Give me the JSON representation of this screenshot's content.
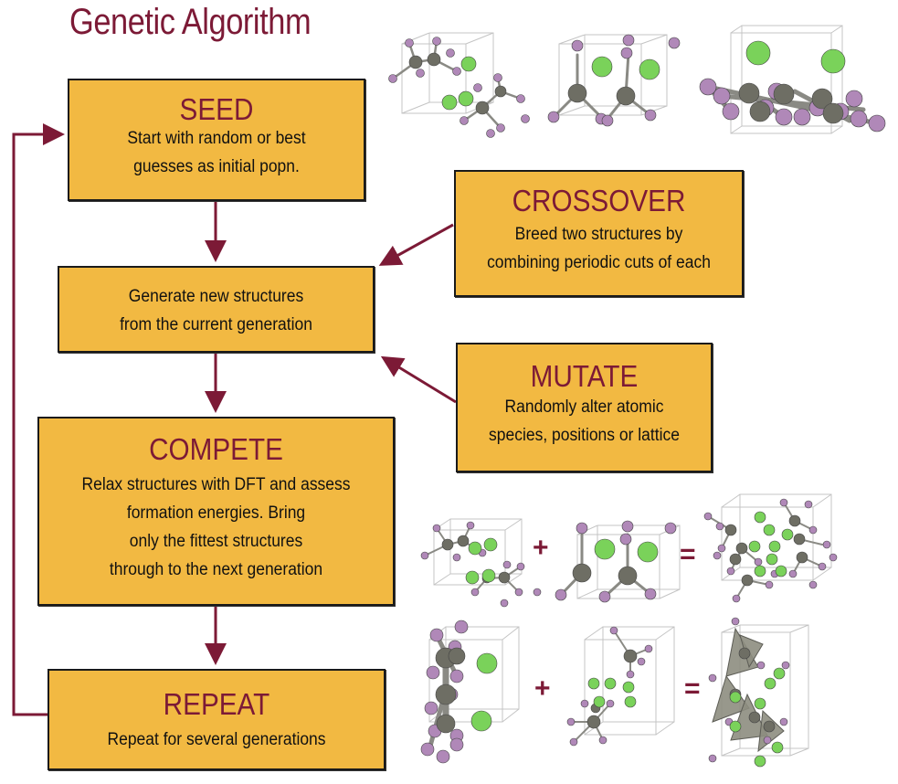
{
  "title": "Genetic Algorithm",
  "colors": {
    "accent": "#7c1a36",
    "box_fill": "#f2b942",
    "carbon": "#6e6e64",
    "halogen": "#b088b8",
    "chlorine": "#7ad25a"
  },
  "steps": {
    "seed": {
      "title": "SEED",
      "body": "Start with random or best\nguesses as initial popn."
    },
    "generate": {
      "body": "Generate new structures\nfrom the current generation"
    },
    "compete": {
      "title": "COMPETE",
      "body": "Relax structures with DFT and assess\nformation energies. Bring\nonly the fittest structures\nthrough to the next generation"
    },
    "repeat": {
      "title": "REPEAT",
      "body": "Repeat for several generations"
    }
  },
  "operators": {
    "crossover": {
      "title": "CROSSOVER",
      "body": "Breed two structures by\ncombining periodic cuts of each"
    },
    "mutate": {
      "title": "MUTATE",
      "body": "Randomly alter atomic\nspecies, positions or lattice"
    }
  },
  "equations": [
    {
      "plus": "+",
      "equals": "="
    },
    {
      "plus": "+",
      "equals": "="
    }
  ]
}
